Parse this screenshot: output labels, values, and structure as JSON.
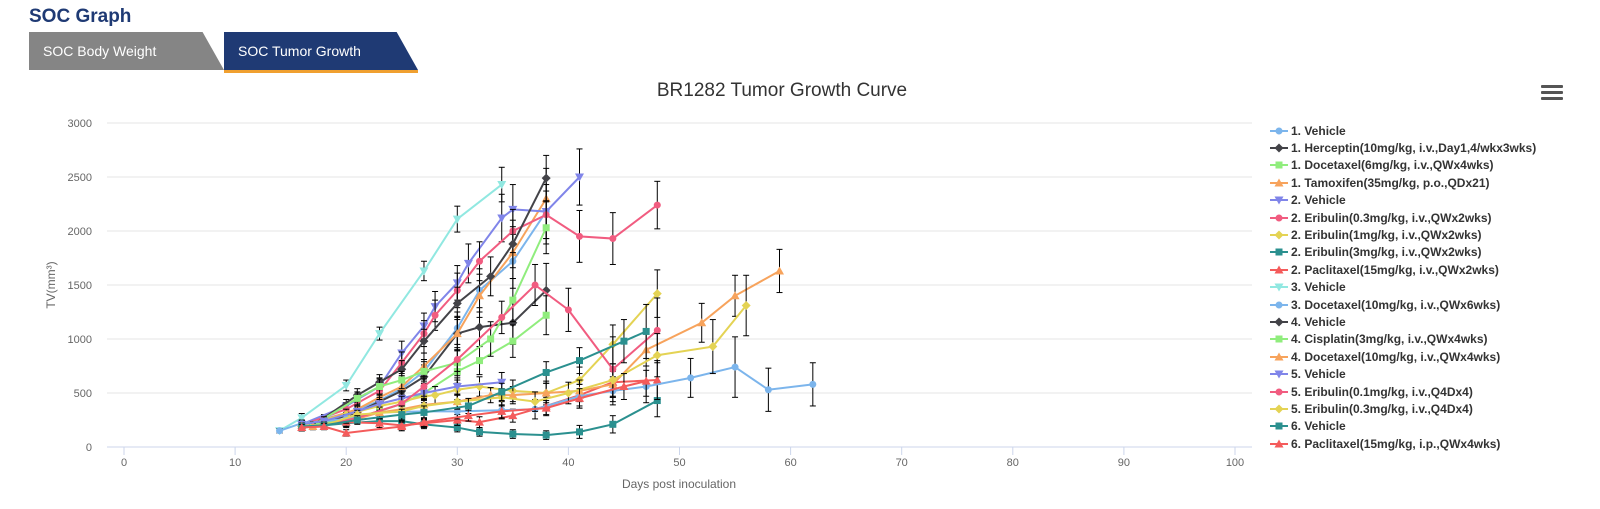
{
  "header": {
    "title": "SOC Graph"
  },
  "tabs": [
    {
      "label": "SOC Body Weight"
    },
    {
      "label": "SOC Tumor Growth"
    }
  ],
  "chart_data": {
    "type": "line",
    "title": "BR1282 Tumor Growth Curve",
    "xlabel": "Days post inoculation",
    "ylabel": "TV(mm³)",
    "xlim": [
      0,
      100
    ],
    "ylim": [
      0,
      3000
    ],
    "xticks": [
      0,
      10,
      20,
      30,
      40,
      50,
      60,
      70,
      80,
      90,
      100
    ],
    "yticks": [
      0,
      500,
      1000,
      1500,
      2000,
      2500,
      3000
    ],
    "grid": true,
    "legend_position": "right",
    "series": [
      {
        "name": "1. Vehicle",
        "color": "#7cb5ec",
        "marker": "circle",
        "x": [
          16,
          18,
          21,
          23,
          25,
          27,
          30,
          32,
          35,
          38
        ],
        "y": [
          210,
          260,
          340,
          430,
          540,
          700,
          1100,
          1450,
          1720,
          2180
        ],
        "err": [
          30,
          40,
          60,
          70,
          90,
          110,
          150,
          200,
          250,
          300
        ]
      },
      {
        "name": "1. Herceptin(10mg/kg, i.v.,Day1,4/wkx3wks)",
        "color": "#434348",
        "marker": "diamond",
        "x": [
          16,
          18,
          21,
          23,
          25,
          27,
          30,
          32,
          35,
          38
        ],
        "y": [
          190,
          230,
          320,
          420,
          520,
          650,
          1050,
          1110,
          1150,
          1450
        ],
        "err": [
          30,
          40,
          50,
          70,
          90,
          110,
          150,
          180,
          200,
          250
        ]
      },
      {
        "name": "1. Docetaxel(6mg/kg, i.v.,QWx4wks)",
        "color": "#90ed7d",
        "marker": "square",
        "x": [
          16,
          18,
          21,
          23,
          25,
          27,
          30,
          32,
          35,
          38
        ],
        "y": [
          190,
          220,
          280,
          330,
          400,
          500,
          700,
          800,
          980,
          1220
        ],
        "err": [
          30,
          30,
          40,
          60,
          70,
          90,
          110,
          130,
          150,
          180
        ]
      },
      {
        "name": "1. Tamoxifen(35mg/kg, p.o.,QDx21)",
        "color": "#f7a35c",
        "marker": "triangle",
        "x": [
          16,
          18,
          21,
          23,
          25,
          27,
          30,
          32,
          35,
          38
        ],
        "y": [
          200,
          250,
          350,
          460,
          560,
          750,
          1050,
          1400,
          1800,
          2300
        ],
        "err": [
          30,
          40,
          60,
          80,
          100,
          120,
          160,
          200,
          240,
          280
        ]
      },
      {
        "name": "2. Vehicle",
        "color": "#8085e9",
        "marker": "triangle-down",
        "x": [
          16,
          20,
          23,
          25,
          27,
          28,
          30,
          31,
          34,
          35,
          38,
          41
        ],
        "y": [
          210,
          380,
          560,
          870,
          1120,
          1300,
          1520,
          1700,
          2120,
          2200,
          2180,
          2500
        ],
        "err": [
          40,
          60,
          80,
          110,
          120,
          140,
          160,
          180,
          220,
          230,
          250,
          260
        ]
      },
      {
        "name": "2. Eribulin(0.3mg/kg, i.v.,QWx2wks)",
        "color": "#f15c80",
        "marker": "circle",
        "x": [
          16,
          20,
          23,
          25,
          27,
          28,
          30,
          32,
          35,
          38,
          41,
          44,
          48
        ],
        "y": [
          200,
          350,
          520,
          780,
          1050,
          1220,
          1450,
          1720,
          2000,
          2150,
          1950,
          1930,
          2240
        ],
        "err": [
          40,
          60,
          80,
          100,
          120,
          140,
          160,
          180,
          200,
          220,
          240,
          240,
          220
        ]
      },
      {
        "name": "2. Eribulin(1mg/kg, i.v.,QWx2wks)",
        "color": "#e4d354",
        "marker": "diamond",
        "x": [
          16,
          20,
          23,
          25,
          27,
          28,
          30,
          32,
          35,
          38,
          41,
          44,
          48
        ],
        "y": [
          200,
          300,
          380,
          420,
          470,
          480,
          530,
          560,
          520,
          500,
          620,
          950,
          1420
        ],
        "err": [
          40,
          50,
          60,
          70,
          80,
          80,
          90,
          90,
          100,
          110,
          120,
          180,
          220
        ]
      },
      {
        "name": "2. Eribulin(3mg/kg, i.v.,QWx2wks)",
        "color": "#2b908f",
        "marker": "square",
        "x": [
          16,
          20,
          23,
          25,
          27,
          30,
          32,
          35,
          38,
          41,
          44,
          48
        ],
        "y": [
          180,
          220,
          240,
          240,
          210,
          180,
          140,
          120,
          110,
          140,
          210,
          430
        ],
        "err": [
          30,
          40,
          40,
          40,
          40,
          40,
          40,
          40,
          40,
          60,
          80,
          150
        ]
      },
      {
        "name": "2. Paclitaxel(15mg/kg, i.v.,QWx2wks)",
        "color": "#f45b5b",
        "marker": "triangle",
        "x": [
          16,
          20,
          23,
          25,
          27,
          30,
          32,
          35,
          38,
          41,
          44,
          48
        ],
        "y": [
          180,
          230,
          220,
          200,
          220,
          250,
          230,
          290,
          380,
          480,
          600,
          620
        ],
        "err": [
          30,
          40,
          40,
          40,
          40,
          50,
          50,
          60,
          80,
          100,
          140,
          180
        ]
      },
      {
        "name": "3. Vehicle",
        "color": "#91e8e1",
        "marker": "triangle-down",
        "x": [
          14,
          16,
          20,
          23,
          27,
          30,
          34
        ],
        "y": [
          150,
          270,
          570,
          1050,
          1630,
          2110,
          2430
        ],
        "err": [
          20,
          40,
          50,
          60,
          90,
          120,
          160
        ]
      },
      {
        "name": "3. Docetaxel(10mg/kg, i.v.,QWx6wks)",
        "color": "#7cb5ec",
        "marker": "circle",
        "x": [
          14,
          16,
          20,
          23,
          27,
          30,
          34,
          37,
          41,
          44,
          47,
          51,
          55,
          58,
          62
        ],
        "y": [
          150,
          220,
          260,
          320,
          330,
          330,
          340,
          350,
          470,
          520,
          560,
          640,
          740,
          530,
          580
        ],
        "err": [
          20,
          30,
          40,
          50,
          60,
          70,
          80,
          90,
          110,
          130,
          150,
          180,
          280,
          200,
          200
        ]
      },
      {
        "name": "4. Vehicle",
        "color": "#434348",
        "marker": "diamond",
        "x": [
          17,
          21,
          23,
          25,
          27,
          30,
          33,
          35,
          38
        ],
        "y": [
          200,
          480,
          600,
          720,
          980,
          1330,
          1580,
          1880,
          2490
        ],
        "err": [
          30,
          60,
          70,
          80,
          110,
          150,
          180,
          220,
          210
        ]
      },
      {
        "name": "4. Cisplatin(3mg/kg, i.v.,QWx4wks)",
        "color": "#90ed7d",
        "marker": "square",
        "x": [
          17,
          21,
          23,
          25,
          27,
          30,
          33,
          35,
          38
        ],
        "y": [
          200,
          450,
          560,
          620,
          700,
          780,
          1000,
          1360,
          2030
        ],
        "err": [
          30,
          60,
          70,
          80,
          90,
          120,
          160,
          200,
          240
        ]
      },
      {
        "name": "4. Docetaxel(10mg/kg, i.v.,QWx4wks)",
        "color": "#f7a35c",
        "marker": "triangle",
        "x": [
          17,
          21,
          23,
          25,
          27,
          30,
          33,
          35,
          38,
          41,
          44,
          47,
          52,
          55,
          59
        ],
        "y": [
          190,
          260,
          320,
          350,
          390,
          420,
          480,
          480,
          500,
          520,
          580,
          900,
          1150,
          1400,
          1630
        ],
        "err": [
          30,
          40,
          50,
          50,
          60,
          60,
          70,
          80,
          90,
          100,
          120,
          150,
          180,
          190,
          200
        ]
      },
      {
        "name": "5. Vehicle",
        "color": "#8085e9",
        "marker": "triangle-down",
        "x": [
          16,
          18,
          21,
          23,
          25,
          27,
          30,
          34
        ],
        "y": [
          210,
          240,
          330,
          400,
          450,
          500,
          560,
          600
        ],
        "err": [
          30,
          40,
          50,
          60,
          60,
          70,
          80,
          90
        ]
      },
      {
        "name": "5. Eribulin(0.1mg/kg, i.v.,Q4Dx4)",
        "color": "#f15c80",
        "marker": "circle",
        "x": [
          16,
          18,
          21,
          25,
          27,
          30,
          34,
          37,
          40,
          44,
          48
        ],
        "y": [
          190,
          200,
          270,
          400,
          560,
          810,
          1200,
          1500,
          1270,
          720,
          1080
        ],
        "err": [
          30,
          30,
          50,
          70,
          90,
          110,
          150,
          190,
          200,
          300,
          300
        ]
      },
      {
        "name": "5. Eribulin(0.3mg/kg, i.v.,Q4Dx4)",
        "color": "#e4d354",
        "marker": "diamond",
        "x": [
          16,
          18,
          21,
          25,
          27,
          30,
          34,
          37,
          40,
          44,
          48,
          53,
          56
        ],
        "y": [
          190,
          200,
          300,
          330,
          380,
          420,
          460,
          420,
          500,
          620,
          850,
          930,
          1310
        ],
        "err": [
          30,
          30,
          40,
          50,
          60,
          70,
          80,
          90,
          100,
          150,
          200,
          250,
          280
        ]
      },
      {
        "name": "6. Vehicle",
        "color": "#2b908f",
        "marker": "square",
        "x": [
          16,
          18,
          21,
          25,
          27,
          31,
          34,
          38,
          41,
          45,
          47
        ],
        "y": [
          190,
          200,
          250,
          300,
          320,
          380,
          510,
          690,
          800,
          980,
          1070
        ],
        "err": [
          30,
          30,
          40,
          50,
          60,
          70,
          80,
          100,
          120,
          200,
          250
        ]
      },
      {
        "name": "6. Paclitaxel(15mg/kg, i.p.,QWx4wks)",
        "color": "#f45b5b",
        "marker": "triangle",
        "x": [
          16,
          18,
          20,
          25,
          27,
          31,
          34,
          38,
          41,
          45,
          47
        ],
        "y": [
          180,
          190,
          130,
          190,
          230,
          290,
          330,
          360,
          450,
          560,
          610
        ],
        "err": [
          30,
          30,
          30,
          40,
          40,
          50,
          60,
          70,
          90,
          120,
          140
        ]
      }
    ]
  }
}
